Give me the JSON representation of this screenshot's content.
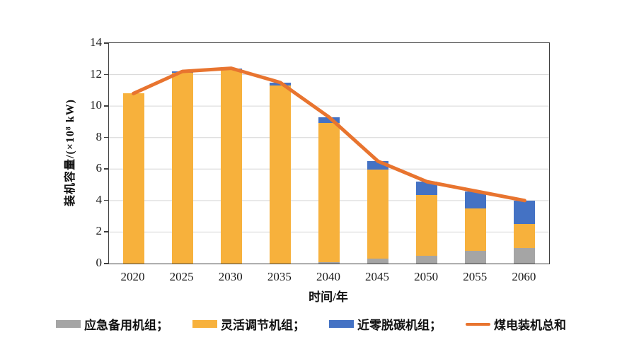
{
  "chart_data": {
    "type": "bar",
    "subtype": "stacked-bars-with-line-overlay",
    "title": "",
    "categories": [
      "2020",
      "2025",
      "2030",
      "2035",
      "2040",
      "2045",
      "2050",
      "2055",
      "2060"
    ],
    "series": [
      {
        "name": "应急备用机组",
        "color": "#A5A5A5",
        "values": [
          0,
          0,
          0,
          0,
          0.1,
          0.3,
          0.5,
          0.8,
          1.0
        ]
      },
      {
        "name": "灵活调节机组",
        "color": "#F7B13C",
        "values": [
          10.8,
          12.1,
          12.3,
          11.3,
          8.85,
          5.65,
          3.85,
          2.7,
          1.5
        ]
      },
      {
        "name": "近零脱碳机组",
        "color": "#4472C4",
        "values": [
          0,
          0.1,
          0.1,
          0.2,
          0.35,
          0.55,
          0.85,
          1.1,
          1.5
        ]
      }
    ],
    "line_series": {
      "name": "煤电装机总和",
      "color": "#E8742F",
      "values": [
        10.8,
        12.2,
        12.4,
        11.5,
        9.3,
        6.5,
        5.2,
        4.6,
        4.0
      ]
    },
    "xlabel": "时间/年",
    "ylabel": "装机容量/(×10⁸ kW)",
    "ylim": [
      0,
      14
    ],
    "yticks": [
      0,
      2,
      4,
      6,
      8,
      10,
      12,
      14
    ],
    "grid": "horizontal",
    "gridline_color": "#D6D6D6",
    "legend_position": "bottom",
    "legend_labels": [
      "应急备用机组；",
      "灵活调节机组；",
      "近零脱碳机组；",
      "煤电装机总和"
    ]
  }
}
